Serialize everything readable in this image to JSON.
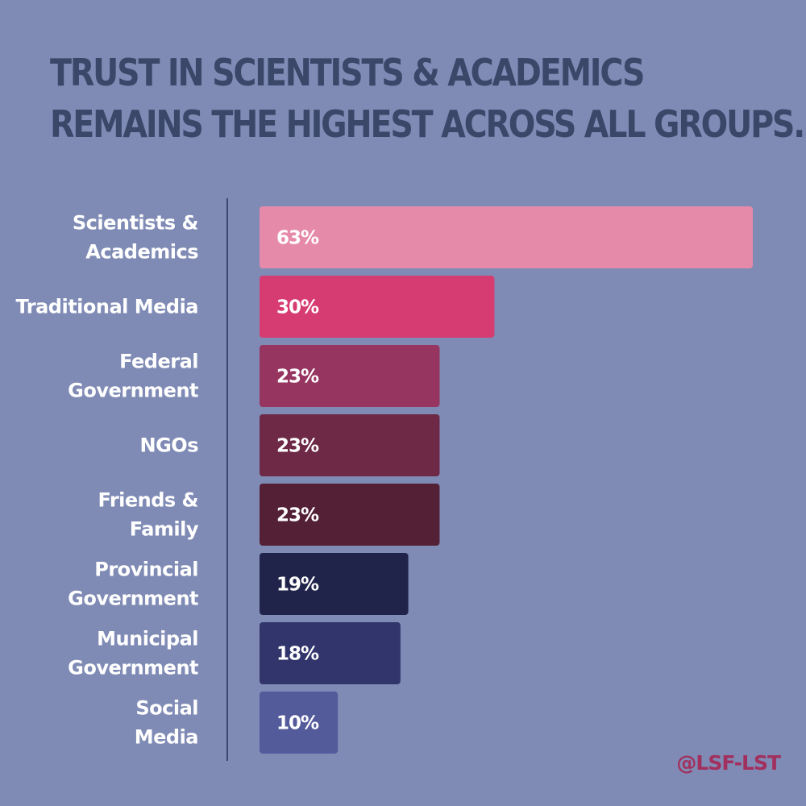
{
  "title_lines": [
    "TRUST IN SCIENTISTS & ACADEMICS",
    "REMAINS THE HIGHEST ACROSS ALL GROUPS."
  ],
  "credit": "@LSF-LST",
  "colors": {
    "background": "#7f8bb5",
    "title": "#3a4768",
    "axis": "#3d4670",
    "credit": "#a2305e"
  },
  "chart_data": {
    "type": "bar",
    "orientation": "horizontal",
    "title": "TRUST IN SCIENTISTS & ACADEMICS REMAINS THE HIGHEST ACROSS ALL GROUPS.",
    "xlabel": "",
    "ylabel": "",
    "xlim": [
      0,
      63
    ],
    "grid": false,
    "legend": "none",
    "categories": [
      [
        "Scientists &",
        "Academics"
      ],
      [
        "Traditional Media"
      ],
      [
        "Federal",
        "Government"
      ],
      [
        "NGOs"
      ],
      [
        "Friends &",
        "Family"
      ],
      [
        "Provincial",
        "Government"
      ],
      [
        "Municipal",
        "Government"
      ],
      [
        "Social",
        "Media"
      ]
    ],
    "values": [
      63,
      30,
      23,
      23,
      23,
      19,
      18,
      10
    ],
    "value_labels": [
      "63%",
      "30%",
      "23%",
      "23%",
      "23%",
      "19%",
      "18%",
      "10%"
    ],
    "bar_colors": [
      "#e68aaa",
      "#d63c71",
      "#963560",
      "#6d2946",
      "#532035",
      "#21244a",
      "#31356b",
      "#545b9b"
    ]
  }
}
